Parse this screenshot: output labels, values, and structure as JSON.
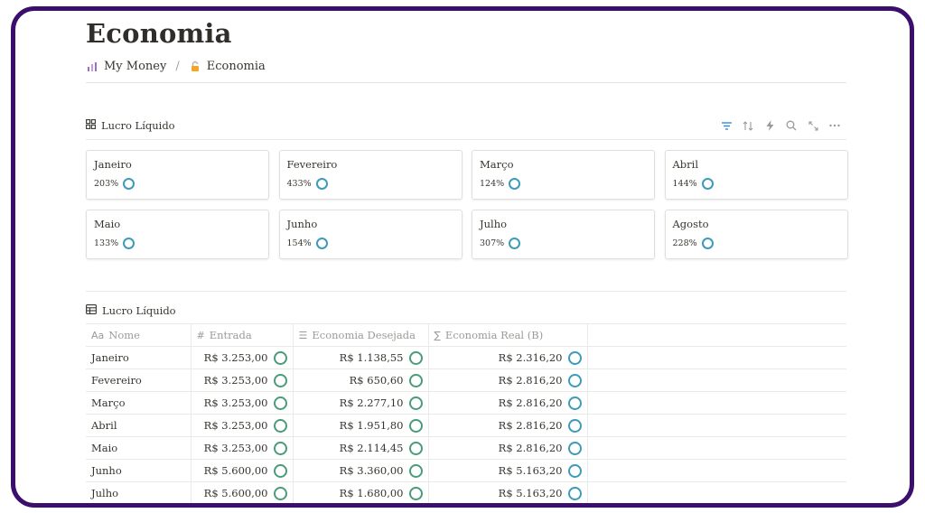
{
  "page": {
    "title": "Economia",
    "breadcrumb": [
      {
        "label": "My Money",
        "icon": "bar-chart-icon"
      },
      {
        "label": "Economia",
        "icon": "lock-icon"
      }
    ]
  },
  "gallery": {
    "view_label": "Lucro Líquido",
    "icon": "gallery-grid-icon",
    "toolbar": [
      "filter-icon",
      "sort-icon",
      "automation-icon",
      "search-icon",
      "expand-icon",
      "more-icon"
    ],
    "cards": [
      {
        "name": "Janeiro",
        "value": "203%"
      },
      {
        "name": "Fevereiro",
        "value": "433%"
      },
      {
        "name": "Março",
        "value": "124%"
      },
      {
        "name": "Abril",
        "value": "144%"
      },
      {
        "name": "Maio",
        "value": "133%"
      },
      {
        "name": "Junho",
        "value": "154%"
      },
      {
        "name": "Julho",
        "value": "307%"
      },
      {
        "name": "Agosto",
        "value": "228%"
      }
    ]
  },
  "table": {
    "view_label": "Lucro Líquido",
    "icon": "table-icon",
    "columns": [
      {
        "label": "Nome",
        "icon_text": "Aa"
      },
      {
        "label": "Entrada",
        "icon_text": "#"
      },
      {
        "label": "Economia Desejada",
        "icon_text": "☰"
      },
      {
        "label": "Economia Real (B)",
        "icon_text": "∑"
      }
    ],
    "rows": [
      {
        "name": "Janeiro",
        "entrada": "R$ 3.253,00",
        "desejada": "R$ 1.138,55",
        "real": "R$ 2.316,20"
      },
      {
        "name": "Fevereiro",
        "entrada": "R$ 3.253,00",
        "desejada": "R$ 650,60",
        "real": "R$ 2.816,20"
      },
      {
        "name": "Março",
        "entrada": "R$ 3.253,00",
        "desejada": "R$ 2.277,10",
        "real": "R$ 2.816,20"
      },
      {
        "name": "Abril",
        "entrada": "R$ 3.253,00",
        "desejada": "R$ 1.951,80",
        "real": "R$ 2.816,20"
      },
      {
        "name": "Maio",
        "entrada": "R$ 3.253,00",
        "desejada": "R$ 2.114,45",
        "real": "R$ 2.816,20"
      },
      {
        "name": "Junho",
        "entrada": "R$ 5.600,00",
        "desejada": "R$ 3.360,00",
        "real": "R$ 5.163,20"
      },
      {
        "name": "Julho",
        "entrada": "R$ 5.600,00",
        "desejada": "R$ 1.680,00",
        "real": "R$ 5.163,20"
      }
    ]
  },
  "colors": {
    "frame": "#3b0f6b",
    "ring_blue": "#3d9bb8",
    "ring_green": "#4a9b7a",
    "accent_filter": "#2383e2"
  }
}
